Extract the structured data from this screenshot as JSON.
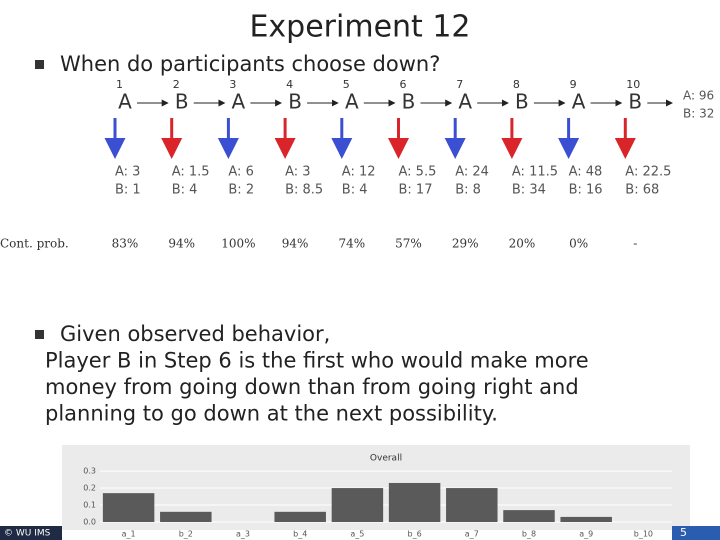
{
  "title": "Experiment 12",
  "bullets": [
    "When do participants choose down?"
  ],
  "game": {
    "steps": [
      {
        "number": "1",
        "player": "A",
        "payoff_a": "A: 3",
        "payoff_b": "B: 1",
        "cont": "83%"
      },
      {
        "number": "2",
        "player": "B",
        "payoff_a": "A: 1.5",
        "payoff_b": "B: 4",
        "cont": "94%"
      },
      {
        "number": "3",
        "player": "A",
        "payoff_a": "A: 6",
        "payoff_b": "B: 2",
        "cont": "100%"
      },
      {
        "number": "4",
        "player": "B",
        "payoff_a": "A: 3",
        "payoff_b": "B: 8.5",
        "cont": "94%"
      },
      {
        "number": "5",
        "player": "A",
        "payoff_a": "A: 12",
        "payoff_b": "B:   4",
        "cont": "74%"
      },
      {
        "number": "6",
        "player": "B",
        "payoff_a": "A:  5.5",
        "payoff_b": "B: 17",
        "cont": "57%"
      },
      {
        "number": "7",
        "player": "A",
        "payoff_a": "A: 24",
        "payoff_b": "B:   8",
        "cont": "29%"
      },
      {
        "number": "8",
        "player": "B",
        "payoff_a": "A: 11.5",
        "payoff_b": "B: 34",
        "cont": "20%"
      },
      {
        "number": "9",
        "player": "A",
        "payoff_a": "A: 48",
        "payoff_b": "B: 16",
        "cont": "0%"
      },
      {
        "number": "10",
        "player": "B",
        "payoff_a": "A: 22.5",
        "payoff_b": "B: 68",
        "cont": "-"
      }
    ],
    "end_a": "A: 96",
    "end_b": "B: 32",
    "cont_label": "Cont. prob."
  },
  "bullet2_lines": [
    "Given observed behavior,",
    "Player B in Step 6 is the first who would make more",
    "money from going down than from going right and",
    "planning to go down at the next possibility."
  ],
  "footer": "© WU IMS",
  "page_number": "5",
  "chart_data": {
    "type": "bar",
    "title": "Overall",
    "categories": [
      "a_1",
      "b_2",
      "a_3",
      "b_4",
      "a_5",
      "b_6",
      "a_7",
      "b_8",
      "a_9",
      "b_10"
    ],
    "values": [
      0.17,
      0.06,
      0,
      0.06,
      0.2,
      0.23,
      0.2,
      0.07,
      0.03,
      0
    ],
    "color": "#5a5a5a",
    "ylim": [
      0,
      0.33
    ],
    "yticks": [
      {
        "value": 0,
        "label": "0.0"
      },
      0.1,
      0.2,
      0.3
    ],
    "grid": true
  }
}
